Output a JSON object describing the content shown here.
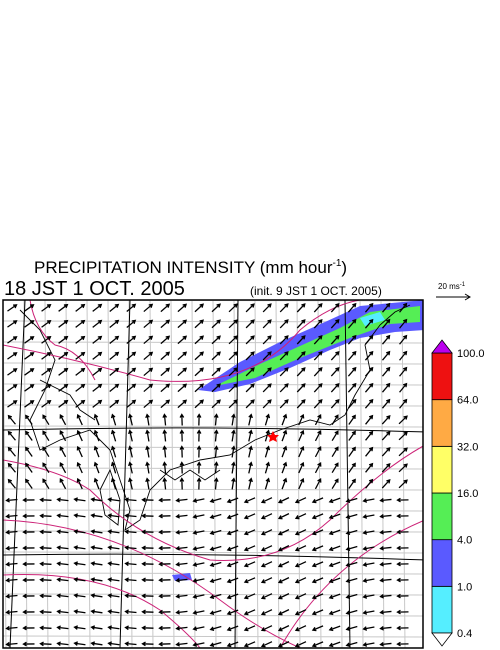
{
  "header": {
    "title": "PRECIPITATION INTENSITY (mm hour",
    "title_superscript": "-1",
    "title_end": ")",
    "valid_time": "18 JST 1 OCT. 2005",
    "init_time": "(init. 9 JST 1 OCT. 2005)"
  },
  "vector_key": {
    "label": "20 ms",
    "superscript": "-1"
  },
  "colorbar": {
    "levels": [
      {
        "value": 0.4,
        "label": "0.4"
      },
      {
        "value": 1,
        "label": "1.0"
      },
      {
        "value": 4,
        "label": "4.0"
      },
      {
        "value": 16,
        "label": "16.0"
      },
      {
        "value": 32,
        "label": "32.0"
      },
      {
        "value": 64,
        "label": "64.0"
      },
      {
        "value": 100,
        "label": "100.0"
      }
    ],
    "colors": [
      "#55eeff",
      "#5a5aff",
      "#55ee55",
      "#ffff66",
      "#ffaa44",
      "#ee1111"
    ],
    "below_color": "#ffffff",
    "above_color": "#bb00ee"
  }
}
